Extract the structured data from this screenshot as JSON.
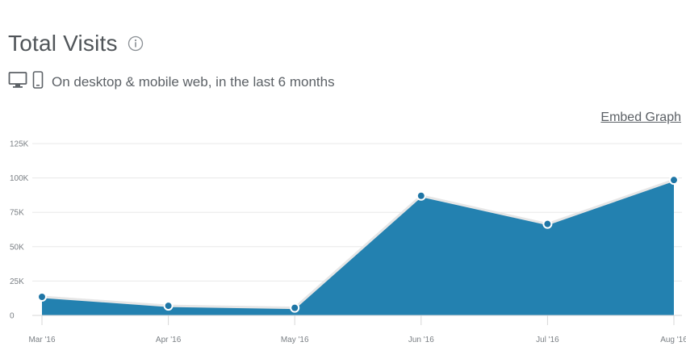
{
  "header": {
    "title": "Total Visits",
    "subtitle": "On desktop & mobile web, in the last 6 months",
    "embed_label": "Embed Graph"
  },
  "icons": [
    "info-icon",
    "desktop-icon",
    "mobile-icon"
  ],
  "colors": {
    "area_fill": "#2381b0",
    "line": "#e6e6e6",
    "point": "#1f76a6",
    "grid": "#e8e8e8"
  },
  "chart_data": {
    "type": "area",
    "categories": [
      "Mar '16",
      "Apr '16",
      "May '16",
      "Jun '16",
      "Jul '16",
      "Aug '16"
    ],
    "values": [
      13500,
      7000,
      5500,
      87000,
      66500,
      98500
    ],
    "y_ticks": [
      "0",
      "25K",
      "50K",
      "75K",
      "100K",
      "125K"
    ],
    "y_tick_values": [
      0,
      25000,
      50000,
      75000,
      100000,
      125000
    ],
    "ylim": [
      0,
      125000
    ],
    "grid": true
  }
}
